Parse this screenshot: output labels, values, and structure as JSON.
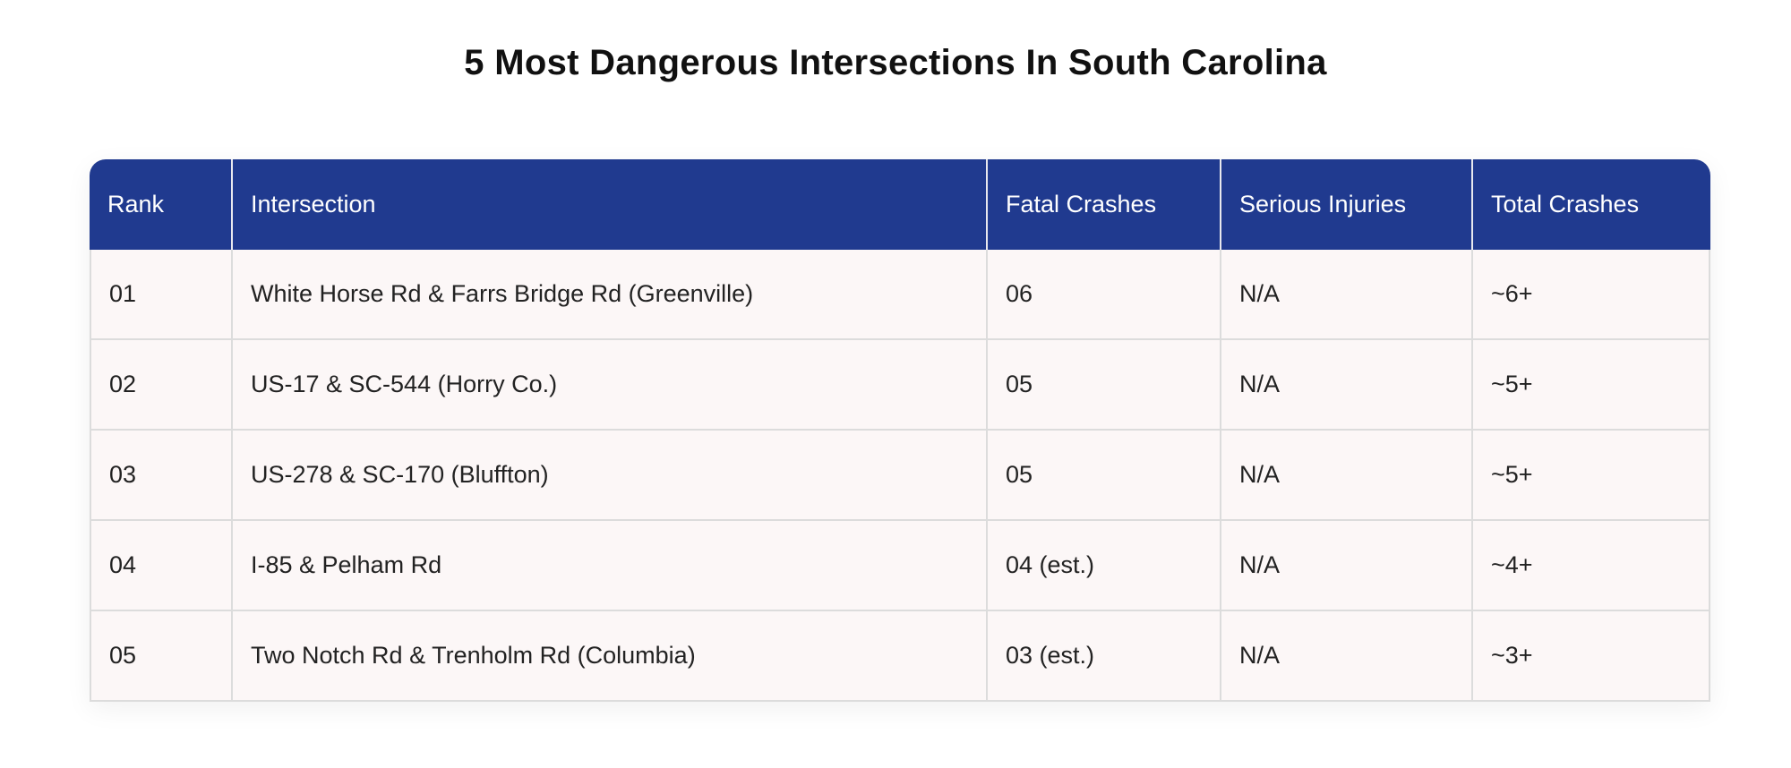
{
  "title": "5 Most Dangerous Intersections In South Carolina",
  "colors": {
    "header_bg": "#203a8f",
    "header_text": "#ffffff",
    "row_bg": "#fcf7f7",
    "border": "#dcdcdc"
  },
  "table": {
    "headers": [
      "Rank",
      "Intersection",
      "Fatal Crashes",
      "Serious Injuries",
      "Total Crashes"
    ],
    "rows": [
      [
        "01",
        "White Horse Rd & Farrs Bridge Rd (Greenville)",
        "06",
        "N/A",
        "~6+"
      ],
      [
        "02",
        "US-17 & SC-544 (Horry Co.)",
        "05",
        "N/A",
        "~5+"
      ],
      [
        "03",
        "US-278 & SC-170 (Bluffton)",
        "05",
        "N/A",
        "~5+"
      ],
      [
        "04",
        "I-85 & Pelham Rd",
        "04 (est.)",
        "N/A",
        "~4+"
      ],
      [
        "05",
        "Two Notch Rd & Trenholm Rd (Columbia)",
        "03 (est.)",
        "N/A",
        "~3+"
      ]
    ]
  }
}
